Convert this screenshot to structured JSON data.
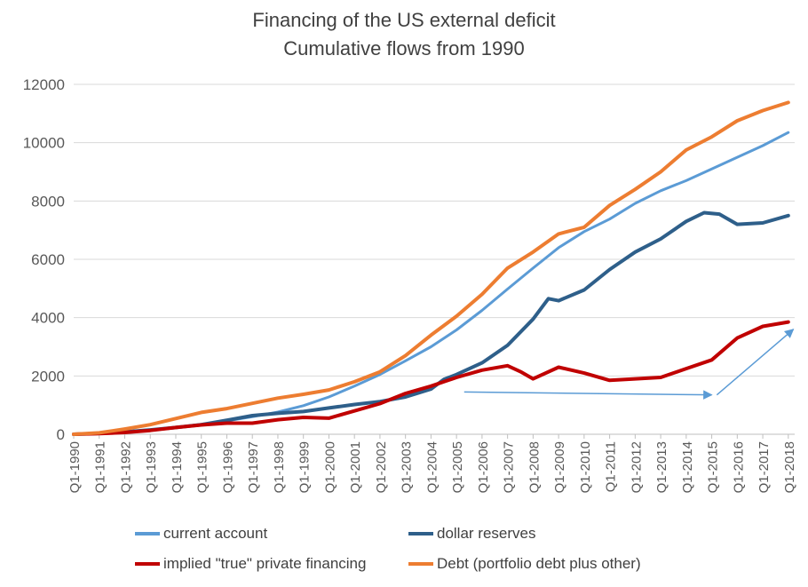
{
  "chart_data": {
    "type": "line",
    "title": "Financing of the  US external deficit",
    "subtitle": "Cumulative flows from 1990",
    "xlabel": "",
    "ylabel": "",
    "ylim": [
      0,
      12000
    ],
    "y_ticks": [
      "0",
      "2000",
      "4000",
      "6000",
      "8000",
      "10000",
      "12000"
    ],
    "x_tick_labels": [
      "Q1-1990",
      "Q1-1991",
      "Q1-1992",
      "Q1-1993",
      "Q1-1994",
      "Q1-1995",
      "Q1-1996",
      "Q1-1997",
      "Q1-1998",
      "Q1-1999",
      "Q1-2000",
      "Q1-2001",
      "Q1-2002",
      "Q1-2003",
      "Q1-2004",
      "Q1-2005",
      "Q1-2006",
      "Q1-2007",
      "Q1-2008",
      "Q1-2009",
      "Q1-2010",
      "Q1-2011",
      "Q1-2012",
      "Q1-2013",
      "Q1-2014",
      "Q1-2015",
      "Q1-2016",
      "Q1-2017",
      "Q1-2018"
    ],
    "grid": "horizontal",
    "legend_position": "bottom",
    "series": [
      {
        "name": "current account",
        "color": "#5B9BD5",
        "points": [
          [
            1990,
            0
          ],
          [
            1991,
            20
          ],
          [
            1992,
            60
          ],
          [
            1993,
            130
          ],
          [
            1994,
            230
          ],
          [
            1995,
            340
          ],
          [
            1996,
            460
          ],
          [
            1997,
            600
          ],
          [
            1998,
            760
          ],
          [
            1999,
            980
          ],
          [
            2000,
            1280
          ],
          [
            2001,
            1650
          ],
          [
            2002,
            2050
          ],
          [
            2003,
            2520
          ],
          [
            2004,
            3000
          ],
          [
            2005,
            3580
          ],
          [
            2006,
            4250
          ],
          [
            2007,
            4980
          ],
          [
            2008,
            5700
          ],
          [
            2009,
            6400
          ],
          [
            2010,
            6950
          ],
          [
            2011,
            7380
          ],
          [
            2012,
            7920
          ],
          [
            2013,
            8350
          ],
          [
            2014,
            8700
          ],
          [
            2015,
            9100
          ],
          [
            2016,
            9500
          ],
          [
            2017,
            9900
          ],
          [
            2018,
            10350
          ]
        ]
      },
      {
        "name": "dollar reserves",
        "color": "#2E5F8A",
        "points": [
          [
            1990,
            0
          ],
          [
            1991,
            30
          ],
          [
            1992,
            80
          ],
          [
            1993,
            150
          ],
          [
            1994,
            230
          ],
          [
            1995,
            330
          ],
          [
            1996,
            480
          ],
          [
            1997,
            640
          ],
          [
            1998,
            720
          ],
          [
            1999,
            780
          ],
          [
            2000,
            900
          ],
          [
            2001,
            1020
          ],
          [
            2002,
            1120
          ],
          [
            2003,
            1280
          ],
          [
            2004,
            1550
          ],
          [
            2004.5,
            1880
          ],
          [
            2005,
            2050
          ],
          [
            2006,
            2450
          ],
          [
            2007,
            3050
          ],
          [
            2008,
            3950
          ],
          [
            2008.6,
            4650
          ],
          [
            2009,
            4580
          ],
          [
            2010,
            4950
          ],
          [
            2011,
            5650
          ],
          [
            2012,
            6250
          ],
          [
            2013,
            6700
          ],
          [
            2014,
            7300
          ],
          [
            2014.7,
            7600
          ],
          [
            2015.3,
            7550
          ],
          [
            2016,
            7200
          ],
          [
            2017,
            7250
          ],
          [
            2018,
            7500
          ]
        ]
      },
      {
        "name": "implied \"true\" private financing",
        "color": "#C00000",
        "points": [
          [
            1990,
            0
          ],
          [
            1991,
            20
          ],
          [
            1992,
            60
          ],
          [
            1993,
            130
          ],
          [
            1994,
            230
          ],
          [
            1995,
            320
          ],
          [
            1996,
            380
          ],
          [
            1997,
            380
          ],
          [
            1998,
            500
          ],
          [
            1999,
            580
          ],
          [
            2000,
            550
          ],
          [
            2001,
            800
          ],
          [
            2002,
            1050
          ],
          [
            2003,
            1400
          ],
          [
            2004,
            1650
          ],
          [
            2004.5,
            1800
          ],
          [
            2005,
            1950
          ],
          [
            2006,
            2200
          ],
          [
            2007,
            2350
          ],
          [
            2007.5,
            2150
          ],
          [
            2008,
            1900
          ],
          [
            2009,
            2300
          ],
          [
            2010,
            2100
          ],
          [
            2011,
            1850
          ],
          [
            2012,
            1900
          ],
          [
            2013,
            1950
          ],
          [
            2014,
            2250
          ],
          [
            2015,
            2550
          ],
          [
            2016,
            3300
          ],
          [
            2017,
            3700
          ],
          [
            2018,
            3850
          ]
        ]
      },
      {
        "name": "Debt (portfolio debt plus other)",
        "color": "#ED7D31",
        "points": [
          [
            1990,
            0
          ],
          [
            1991,
            50
          ],
          [
            1992,
            180
          ],
          [
            1993,
            330
          ],
          [
            1994,
            540
          ],
          [
            1995,
            750
          ],
          [
            1996,
            880
          ],
          [
            1997,
            1060
          ],
          [
            1998,
            1240
          ],
          [
            1999,
            1370
          ],
          [
            2000,
            1520
          ],
          [
            2001,
            1800
          ],
          [
            2002,
            2140
          ],
          [
            2003,
            2700
          ],
          [
            2004,
            3400
          ],
          [
            2005,
            4050
          ],
          [
            2006,
            4800
          ],
          [
            2007,
            5700
          ],
          [
            2008,
            6250
          ],
          [
            2009,
            6870
          ],
          [
            2010,
            7100
          ],
          [
            2011,
            7850
          ],
          [
            2012,
            8400
          ],
          [
            2013,
            9000
          ],
          [
            2014,
            9750
          ],
          [
            2015,
            10200
          ],
          [
            2016,
            10750
          ],
          [
            2017,
            11100
          ],
          [
            2018,
            11380
          ]
        ]
      }
    ],
    "annotations": [
      {
        "type": "arrow",
        "from": [
          2005.3,
          1450
        ],
        "to": [
          2015.0,
          1350
        ],
        "color": "#5B9BD5"
      },
      {
        "type": "arrow",
        "from": [
          2015.2,
          1350
        ],
        "to": [
          2018.2,
          3600
        ],
        "color": "#5B9BD5"
      }
    ]
  }
}
